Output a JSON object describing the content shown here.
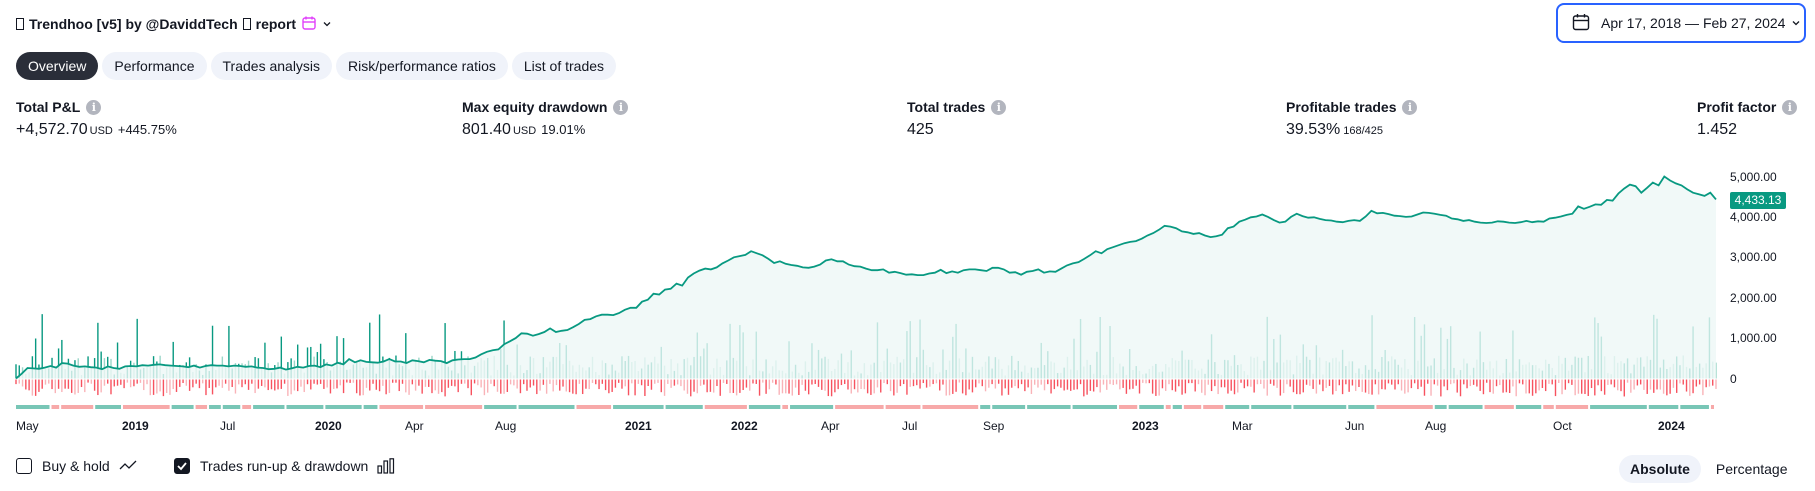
{
  "header": {
    "title": "Trendhoo [v5] by @DaviddTech",
    "report_label": "report",
    "date_range": "Apr 17, 2018 — Feb 27, 2024"
  },
  "tabs": [
    {
      "label": "Overview",
      "active": true
    },
    {
      "label": "Performance",
      "active": false
    },
    {
      "label": "Trades analysis",
      "active": false
    },
    {
      "label": "Risk/performance ratios",
      "active": false
    },
    {
      "label": "List of trades",
      "active": false
    }
  ],
  "stats": {
    "total_pnl": {
      "label": "Total P&L",
      "value": "+4,572.70",
      "unit": "USD",
      "pct": "+445.75%"
    },
    "max_drawdown": {
      "label": "Max equity drawdown",
      "value": "801.40",
      "unit": "USD",
      "pct": "19.01%"
    },
    "total_trades": {
      "label": "Total trades",
      "value": "425"
    },
    "profitable_trades": {
      "label": "Profitable trades",
      "value": "39.53%",
      "sub": "168/425"
    },
    "profit_factor": {
      "label": "Profit factor",
      "value": "1.452"
    }
  },
  "chart_data": {
    "type": "line",
    "series": [
      {
        "values": [
          0,
          120,
          260,
          250,
          240,
          270,
          310,
          270,
          380,
          370,
          320,
          290,
          300,
          280,
          270,
          230,
          300,
          260,
          240,
          300,
          310,
          300,
          330,
          320,
          340,
          350,
          330,
          320,
          310,
          300,
          280,
          320,
          270,
          310,
          330,
          320,
          320,
          300,
          320,
          310,
          290,
          300,
          270,
          260,
          230,
          240,
          270,
          220,
          250,
          290,
          270,
          310,
          320,
          280,
          350,
          320,
          390,
          350,
          480,
          400,
          450,
          410,
          400,
          390,
          420,
          480,
          420,
          420,
          380,
          450,
          430,
          400,
          460,
          440,
          430,
          380,
          450,
          470,
          480,
          480,
          520,
          600,
          660,
          700,
          720,
          850,
          920,
          1000,
          1120,
          1110,
          1060,
          1100,
          1150,
          1240,
          1150,
          1180,
          1200,
          1270,
          1350,
          1450,
          1470,
          1540,
          1580,
          1580,
          1570,
          1620,
          1700,
          1750,
          1750,
          1900,
          1950,
          2100,
          2080,
          2200,
          2220,
          2350,
          2300,
          2500,
          2600,
          2670,
          2720,
          2700,
          2750,
          2850,
          2920,
          3000,
          3030,
          3060,
          3150,
          3100,
          3050,
          2960,
          2860,
          2900,
          2840,
          2810,
          2790,
          2750,
          2740,
          2770,
          2820,
          2920,
          2950,
          2900,
          2900,
          2820,
          2780,
          2770,
          2720,
          2680,
          2680,
          2700,
          2620,
          2640,
          2610,
          2570,
          2580,
          2560,
          2560,
          2600,
          2620,
          2690,
          2610,
          2650,
          2620,
          2680,
          2700,
          2700,
          2680,
          2660,
          2740,
          2740,
          2700,
          2620,
          2630,
          2570,
          2640,
          2660,
          2700,
          2620,
          2650,
          2640,
          2720,
          2800,
          2850,
          2880,
          2960,
          3050,
          3150,
          3100,
          3200,
          3250,
          3300,
          3350,
          3380,
          3400,
          3460,
          3540,
          3600,
          3680,
          3780,
          3760,
          3720,
          3640,
          3620,
          3580,
          3600,
          3540,
          3500,
          3520,
          3560,
          3720,
          3760,
          3880,
          3930,
          3990,
          4010,
          4060,
          4000,
          3920,
          3860,
          3880,
          4000,
          4080,
          4020,
          3980,
          3990,
          3950,
          3920,
          3910,
          3880,
          3870,
          3900,
          3920,
          3900,
          4010,
          4150,
          4090,
          4100,
          4070,
          4030,
          4020,
          4000,
          4010,
          4060,
          4110,
          4100,
          4080,
          4050,
          4030,
          3960,
          3940,
          3900,
          3920,
          3880,
          3860,
          3850,
          3860,
          3890,
          3880,
          3860,
          3850,
          3870,
          3900,
          3870,
          3890,
          3880,
          3960,
          3980,
          4010,
          4050,
          4080,
          4260,
          4200,
          4250,
          4310,
          4300,
          4420,
          4400,
          4580,
          4700,
          4800,
          4760,
          4600,
          4720,
          4850,
          4780,
          5000,
          4900,
          4830,
          4780,
          4680,
          4600,
          4560,
          4520,
          4600,
          4433.13
        ],
        "color": "#089981"
      }
    ],
    "y_ticks": [
      "5,000.00",
      "4,000.00",
      "3,000.00",
      "2,000.00",
      "1,000.00",
      "0"
    ],
    "ylim": [
      -600,
      5400
    ],
    "last_value_label": "4,433.13",
    "x_ticks": [
      {
        "label": "May",
        "bold": false
      },
      {
        "label": "2019",
        "bold": true
      },
      {
        "label": "Jul",
        "bold": false
      },
      {
        "label": "2020",
        "bold": true
      },
      {
        "label": "Apr",
        "bold": false
      },
      {
        "label": "Aug",
        "bold": false
      },
      {
        "label": "2021",
        "bold": true
      },
      {
        "label": "2022",
        "bold": true
      },
      {
        "label": "Apr",
        "bold": false
      },
      {
        "label": "Jul",
        "bold": false
      },
      {
        "label": "Sep",
        "bold": false
      },
      {
        "label": "2023",
        "bold": true
      },
      {
        "label": "Mar",
        "bold": false
      },
      {
        "label": "Jun",
        "bold": false
      },
      {
        "label": "Aug",
        "bold": false
      },
      {
        "label": "Oct",
        "bold": false
      },
      {
        "label": "2024",
        "bold": true
      }
    ],
    "colors": {
      "line": "#089981",
      "fill": "#eef8f6",
      "runup": "#089981",
      "drawdown": "#f7525f",
      "segment_pos": "#78c6b6",
      "segment_neg": "#f7a9a9"
    },
    "grid": false
  },
  "footer": {
    "buy_hold_label": "Buy & hold",
    "buy_hold_checked": false,
    "runup_label": "Trades run-up & drawdown",
    "runup_checked": true,
    "mode_absolute": "Absolute",
    "mode_percentage": "Percentage",
    "active_mode": "Absolute"
  }
}
